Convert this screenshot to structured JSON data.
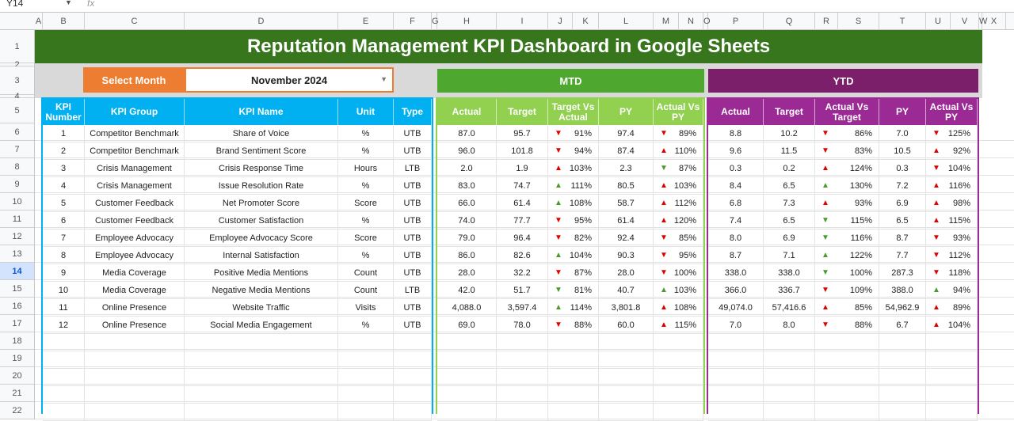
{
  "formula_bar": {
    "name_box": "Y14",
    "fx": "fx"
  },
  "columns": [
    "A",
    "B",
    "C",
    "D",
    "E",
    "F",
    "G",
    "H",
    "I",
    "J",
    "K",
    "L",
    "M",
    "N",
    "O",
    "P",
    "Q",
    "R",
    "S",
    "T",
    "U",
    "V",
    "W",
    "X"
  ],
  "row_numbers": [
    "1",
    "2",
    "3",
    "4",
    "5",
    "6",
    "7",
    "8",
    "9",
    "10",
    "11",
    "12",
    "13",
    "14",
    "15",
    "16",
    "17",
    "18",
    "19",
    "20",
    "21",
    "22"
  ],
  "selected_row": "14",
  "title": "Reputation Management KPI Dashboard in Google Sheets",
  "select_month_label": "Select Month",
  "selected_month": "November 2024",
  "mtd_label": "MTD",
  "ytd_label": "YTD",
  "colors": {
    "title": "#38761d",
    "kpi_header": "#00b0f0",
    "mtd_header": "#92d050",
    "mtd_banner": "#4ea72e",
    "ytd_header": "#9b2a95",
    "ytd_banner": "#7b1f6a",
    "select_month": "#ed7d31",
    "arrow_red": "#e00000",
    "arrow_green": "#4a9a2e"
  },
  "kpi_headers": [
    "KPI Number",
    "KPI Group",
    "KPI Name",
    "Unit",
    "Type"
  ],
  "mtd_headers": [
    "Actual",
    "Target",
    "Target Vs Actual",
    "PY",
    "Actual Vs PY"
  ],
  "ytd_headers": [
    "Actual",
    "Target",
    "Actual Vs Target",
    "PY",
    "Actual Vs PY"
  ],
  "rows": [
    {
      "kpi": [
        "1",
        "Competitor Benchmark",
        "Share of Voice",
        "%",
        "UTB"
      ],
      "mtd": [
        "87.0",
        "95.7",
        "91%",
        "97.4",
        "89%"
      ],
      "mtd_arrows": [
        "down-red",
        "down-red"
      ],
      "ytd": [
        "8.8",
        "10.2",
        "86%",
        "7.0",
        "125%"
      ],
      "ytd_arrows": [
        "down-red",
        "down-red"
      ]
    },
    {
      "kpi": [
        "2",
        "Competitor Benchmark",
        "Brand Sentiment Score",
        "%",
        "UTB"
      ],
      "mtd": [
        "96.0",
        "101.8",
        "94%",
        "87.4",
        "110%"
      ],
      "mtd_arrows": [
        "down-red",
        "up-red"
      ],
      "ytd": [
        "9.6",
        "11.5",
        "83%",
        "10.5",
        "92%"
      ],
      "ytd_arrows": [
        "down-red",
        "up-red"
      ]
    },
    {
      "kpi": [
        "3",
        "Crisis Management",
        "Crisis Response Time",
        "Hours",
        "LTB"
      ],
      "mtd": [
        "2.0",
        "1.9",
        "103%",
        "2.3",
        "87%"
      ],
      "mtd_arrows": [
        "up-red",
        "down-green"
      ],
      "ytd": [
        "0.3",
        "0.2",
        "124%",
        "0.3",
        "104%"
      ],
      "ytd_arrows": [
        "up-red",
        "down-red"
      ]
    },
    {
      "kpi": [
        "4",
        "Crisis Management",
        "Issue Resolution Rate",
        "%",
        "UTB"
      ],
      "mtd": [
        "83.0",
        "74.7",
        "111%",
        "80.5",
        "103%"
      ],
      "mtd_arrows": [
        "up-green",
        "up-red"
      ],
      "ytd": [
        "8.4",
        "6.5",
        "130%",
        "7.2",
        "116%"
      ],
      "ytd_arrows": [
        "up-green",
        "up-red"
      ]
    },
    {
      "kpi": [
        "5",
        "Customer Feedback",
        "Net Promoter Score",
        "Score",
        "UTB"
      ],
      "mtd": [
        "66.0",
        "61.4",
        "108%",
        "58.7",
        "112%"
      ],
      "mtd_arrows": [
        "up-green",
        "up-red"
      ],
      "ytd": [
        "6.8",
        "7.3",
        "93%",
        "6.9",
        "98%"
      ],
      "ytd_arrows": [
        "up-red",
        "up-red"
      ]
    },
    {
      "kpi": [
        "6",
        "Customer Feedback",
        "Customer Satisfaction",
        "%",
        "UTB"
      ],
      "mtd": [
        "74.0",
        "77.7",
        "95%",
        "61.4",
        "120%"
      ],
      "mtd_arrows": [
        "down-red",
        "up-red"
      ],
      "ytd": [
        "7.4",
        "6.5",
        "115%",
        "6.5",
        "115%"
      ],
      "ytd_arrows": [
        "down-green",
        "up-red"
      ]
    },
    {
      "kpi": [
        "7",
        "Employee Advocacy",
        "Employee Advocacy Score",
        "Score",
        "UTB"
      ],
      "mtd": [
        "79.0",
        "96.4",
        "82%",
        "92.4",
        "85%"
      ],
      "mtd_arrows": [
        "down-red",
        "down-red"
      ],
      "ytd": [
        "8.0",
        "6.9",
        "116%",
        "8.7",
        "93%"
      ],
      "ytd_arrows": [
        "down-green",
        "down-red"
      ]
    },
    {
      "kpi": [
        "8",
        "Employee Advocacy",
        "Internal Satisfaction",
        "%",
        "UTB"
      ],
      "mtd": [
        "86.0",
        "82.6",
        "104%",
        "90.3",
        "95%"
      ],
      "mtd_arrows": [
        "up-green",
        "down-red"
      ],
      "ytd": [
        "8.7",
        "7.1",
        "122%",
        "7.7",
        "112%"
      ],
      "ytd_arrows": [
        "up-green",
        "down-red"
      ]
    },
    {
      "kpi": [
        "9",
        "Media Coverage",
        "Positive Media Mentions",
        "Count",
        "UTB"
      ],
      "mtd": [
        "28.0",
        "32.2",
        "87%",
        "28.0",
        "100%"
      ],
      "mtd_arrows": [
        "down-red",
        "down-red"
      ],
      "ytd": [
        "338.0",
        "338.0",
        "100%",
        "287.3",
        "118%"
      ],
      "ytd_arrows": [
        "down-green",
        "down-red"
      ]
    },
    {
      "kpi": [
        "10",
        "Media Coverage",
        "Negative Media Mentions",
        "Count",
        "LTB"
      ],
      "mtd": [
        "42.0",
        "51.7",
        "81%",
        "40.7",
        "103%"
      ],
      "mtd_arrows": [
        "down-green",
        "up-green"
      ],
      "ytd": [
        "366.0",
        "336.7",
        "109%",
        "388.0",
        "94%"
      ],
      "ytd_arrows": [
        "down-red",
        "up-green"
      ]
    },
    {
      "kpi": [
        "11",
        "Online Presence",
        "Website Traffic",
        "Visits",
        "UTB"
      ],
      "mtd": [
        "4,088.0",
        "3,597.4",
        "114%",
        "3,801.8",
        "108%"
      ],
      "mtd_arrows": [
        "up-green",
        "up-red"
      ],
      "ytd": [
        "49,074.0",
        "57,416.6",
        "85%",
        "54,962.9",
        "89%"
      ],
      "ytd_arrows": [
        "up-red",
        "up-red"
      ]
    },
    {
      "kpi": [
        "12",
        "Online Presence",
        "Social Media Engagement",
        "%",
        "UTB"
      ],
      "mtd": [
        "69.0",
        "78.0",
        "88%",
        "60.0",
        "115%"
      ],
      "mtd_arrows": [
        "down-red",
        "up-red"
      ],
      "ytd": [
        "7.0",
        "8.0",
        "88%",
        "6.7",
        "104%"
      ],
      "ytd_arrows": [
        "down-red",
        "up-red"
      ]
    }
  ]
}
